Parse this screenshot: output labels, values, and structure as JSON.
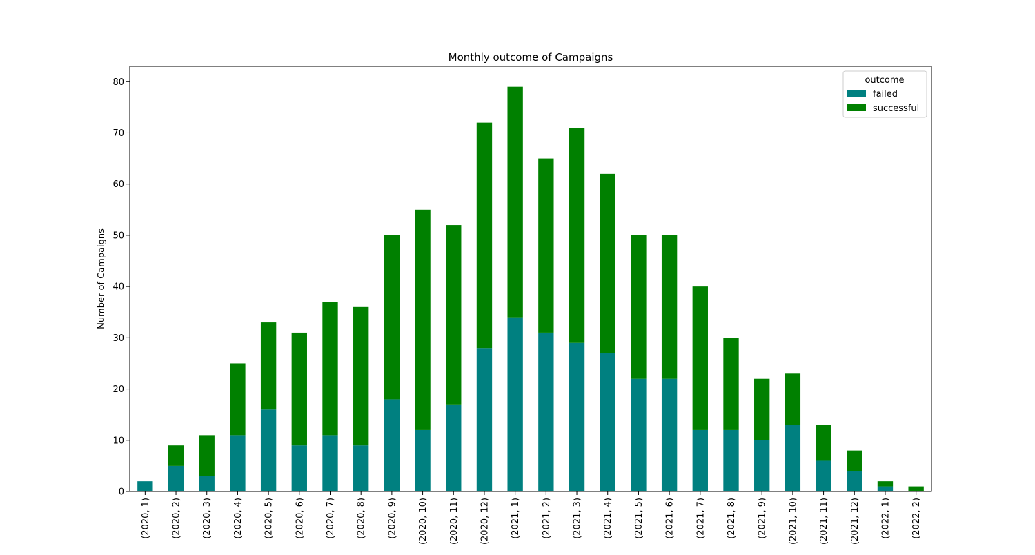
{
  "chart_data": {
    "type": "bar",
    "stacked": true,
    "title": "Monthly outcome of Campaigns",
    "xlabel": "",
    "ylabel": "Number of Campaigns",
    "ylim": [
      0,
      83
    ],
    "yticks": [
      0,
      10,
      20,
      30,
      40,
      50,
      60,
      70,
      80
    ],
    "grid": false,
    "legend": {
      "title": "outcome",
      "placement": "top-right"
    },
    "categories": [
      "(2020, 1)",
      "(2020, 2)",
      "(2020, 3)",
      "(2020, 4)",
      "(2020, 5)",
      "(2020, 6)",
      "(2020, 7)",
      "(2020, 8)",
      "(2020, 9)",
      "(2020, 10)",
      "(2020, 11)",
      "(2020, 12)",
      "(2021, 1)",
      "(2021, 2)",
      "(2021, 3)",
      "(2021, 4)",
      "(2021, 5)",
      "(2021, 6)",
      "(2021, 7)",
      "(2021, 8)",
      "(2021, 9)",
      "(2021, 10)",
      "(2021, 11)",
      "(2021, 12)",
      "(2022, 1)",
      "(2022, 2)"
    ],
    "series": [
      {
        "name": "failed",
        "color": "#008080",
        "values": [
          2,
          5,
          3,
          11,
          16,
          9,
          11,
          9,
          18,
          12,
          17,
          28,
          34,
          31,
          29,
          27,
          22,
          22,
          12,
          12,
          10,
          13,
          6,
          4,
          1,
          0
        ]
      },
      {
        "name": "successful",
        "color": "#008000",
        "values": [
          0,
          4,
          8,
          14,
          17,
          22,
          26,
          27,
          32,
          43,
          35,
          44,
          45,
          34,
          42,
          35,
          28,
          28,
          28,
          18,
          12,
          10,
          7,
          4,
          1,
          1
        ]
      }
    ]
  }
}
